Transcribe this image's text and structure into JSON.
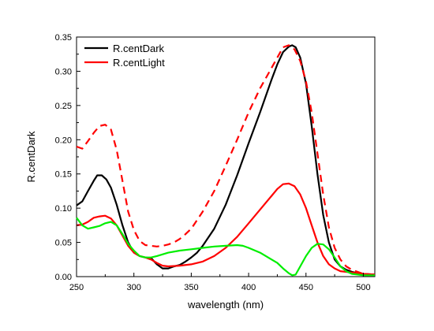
{
  "chart_data": {
    "type": "line",
    "xlabel": "wavelength (nm)",
    "ylabel": "R.centDark",
    "xlim": [
      250,
      510
    ],
    "ylim": [
      0.0,
      0.35
    ],
    "x_ticks": [
      250,
      300,
      350,
      400,
      450,
      500
    ],
    "y_ticks": [
      0.0,
      0.05,
      0.1,
      0.15,
      0.2,
      0.25,
      0.3,
      0.35
    ],
    "legend": {
      "position": "top-left"
    },
    "series": [
      {
        "name": "R.centDark",
        "color": "#000000",
        "dash": "solid",
        "in_legend": true,
        "points": [
          [
            250,
            0.104
          ],
          [
            255,
            0.11
          ],
          [
            260,
            0.125
          ],
          [
            265,
            0.14
          ],
          [
            268,
            0.148
          ],
          [
            272,
            0.148
          ],
          [
            276,
            0.142
          ],
          [
            280,
            0.13
          ],
          [
            285,
            0.105
          ],
          [
            290,
            0.075
          ],
          [
            295,
            0.05
          ],
          [
            300,
            0.035
          ],
          [
            305,
            0.03
          ],
          [
            310,
            0.028
          ],
          [
            315,
            0.027
          ],
          [
            320,
            0.018
          ],
          [
            325,
            0.012
          ],
          [
            330,
            0.012
          ],
          [
            335,
            0.015
          ],
          [
            340,
            0.017
          ],
          [
            345,
            0.022
          ],
          [
            350,
            0.028
          ],
          [
            355,
            0.035
          ],
          [
            360,
            0.045
          ],
          [
            370,
            0.07
          ],
          [
            380,
            0.105
          ],
          [
            390,
            0.148
          ],
          [
            400,
            0.195
          ],
          [
            410,
            0.24
          ],
          [
            420,
            0.288
          ],
          [
            425,
            0.31
          ],
          [
            430,
            0.328
          ],
          [
            435,
            0.336
          ],
          [
            438,
            0.338
          ],
          [
            441,
            0.335
          ],
          [
            445,
            0.32
          ],
          [
            450,
            0.282
          ],
          [
            455,
            0.22
          ],
          [
            460,
            0.15
          ],
          [
            465,
            0.09
          ],
          [
            470,
            0.05
          ],
          [
            475,
            0.025
          ],
          [
            480,
            0.015
          ],
          [
            485,
            0.01
          ],
          [
            490,
            0.007
          ],
          [
            495,
            0.005
          ],
          [
            500,
            0.004
          ],
          [
            510,
            0.003
          ]
        ]
      },
      {
        "name": "R.centLight",
        "color": "#ff0000",
        "dash": "solid",
        "in_legend": true,
        "points": [
          [
            250,
            0.075
          ],
          [
            255,
            0.076
          ],
          [
            260,
            0.08
          ],
          [
            265,
            0.086
          ],
          [
            270,
            0.088
          ],
          [
            275,
            0.089
          ],
          [
            280,
            0.085
          ],
          [
            285,
            0.075
          ],
          [
            290,
            0.06
          ],
          [
            295,
            0.045
          ],
          [
            300,
            0.035
          ],
          [
            305,
            0.03
          ],
          [
            310,
            0.028
          ],
          [
            315,
            0.025
          ],
          [
            320,
            0.02
          ],
          [
            325,
            0.016
          ],
          [
            330,
            0.015
          ],
          [
            340,
            0.016
          ],
          [
            350,
            0.018
          ],
          [
            360,
            0.022
          ],
          [
            370,
            0.03
          ],
          [
            380,
            0.042
          ],
          [
            390,
            0.058
          ],
          [
            400,
            0.078
          ],
          [
            410,
            0.098
          ],
          [
            420,
            0.118
          ],
          [
            425,
            0.128
          ],
          [
            430,
            0.135
          ],
          [
            435,
            0.136
          ],
          [
            440,
            0.132
          ],
          [
            445,
            0.12
          ],
          [
            450,
            0.1
          ],
          [
            455,
            0.075
          ],
          [
            460,
            0.05
          ],
          [
            465,
            0.03
          ],
          [
            470,
            0.018
          ],
          [
            475,
            0.012
          ],
          [
            480,
            0.008
          ],
          [
            490,
            0.006
          ],
          [
            500,
            0.004
          ],
          [
            510,
            0.003
          ]
        ]
      },
      {
        "name": "",
        "color": "#ff0000",
        "dash": "dashed",
        "in_legend": false,
        "points": [
          [
            250,
            0.19
          ],
          [
            255,
            0.187
          ],
          [
            260,
            0.198
          ],
          [
            265,
            0.21
          ],
          [
            270,
            0.22
          ],
          [
            275,
            0.222
          ],
          [
            280,
            0.215
          ],
          [
            285,
            0.185
          ],
          [
            290,
            0.14
          ],
          [
            295,
            0.095
          ],
          [
            300,
            0.068
          ],
          [
            305,
            0.052
          ],
          [
            310,
            0.046
          ],
          [
            315,
            0.045
          ],
          [
            320,
            0.044
          ],
          [
            325,
            0.045
          ],
          [
            330,
            0.047
          ],
          [
            335,
            0.05
          ],
          [
            340,
            0.055
          ],
          [
            345,
            0.062
          ],
          [
            350,
            0.07
          ],
          [
            360,
            0.095
          ],
          [
            370,
            0.125
          ],
          [
            380,
            0.162
          ],
          [
            390,
            0.2
          ],
          [
            400,
            0.24
          ],
          [
            410,
            0.275
          ],
          [
            420,
            0.305
          ],
          [
            425,
            0.32
          ],
          [
            430,
            0.335
          ],
          [
            435,
            0.338
          ],
          [
            440,
            0.332
          ],
          [
            445,
            0.315
          ],
          [
            450,
            0.285
          ],
          [
            455,
            0.24
          ],
          [
            460,
            0.18
          ],
          [
            465,
            0.12
          ],
          [
            470,
            0.072
          ],
          [
            475,
            0.042
          ],
          [
            480,
            0.025
          ],
          [
            485,
            0.015
          ],
          [
            490,
            0.01
          ],
          [
            495,
            0.007
          ],
          [
            500,
            0.004
          ],
          [
            510,
            0.002
          ]
        ]
      },
      {
        "name": "",
        "color": "#00ee00",
        "dash": "solid",
        "in_legend": false,
        "points": [
          [
            250,
            0.086
          ],
          [
            255,
            0.075
          ],
          [
            260,
            0.07
          ],
          [
            265,
            0.072
          ],
          [
            270,
            0.074
          ],
          [
            275,
            0.078
          ],
          [
            280,
            0.08
          ],
          [
            285,
            0.075
          ],
          [
            290,
            0.062
          ],
          [
            295,
            0.048
          ],
          [
            300,
            0.038
          ],
          [
            305,
            0.03
          ],
          [
            310,
            0.028
          ],
          [
            315,
            0.028
          ],
          [
            320,
            0.03
          ],
          [
            330,
            0.035
          ],
          [
            340,
            0.038
          ],
          [
            350,
            0.04
          ],
          [
            360,
            0.042
          ],
          [
            370,
            0.044
          ],
          [
            380,
            0.045
          ],
          [
            390,
            0.046
          ],
          [
            395,
            0.045
          ],
          [
            400,
            0.042
          ],
          [
            410,
            0.035
          ],
          [
            420,
            0.025
          ],
          [
            425,
            0.02
          ],
          [
            430,
            0.012
          ],
          [
            435,
            0.005
          ],
          [
            438,
            0.002
          ],
          [
            441,
            0.003
          ],
          [
            445,
            0.015
          ],
          [
            450,
            0.03
          ],
          [
            455,
            0.042
          ],
          [
            460,
            0.048
          ],
          [
            465,
            0.047
          ],
          [
            470,
            0.04
          ],
          [
            475,
            0.028
          ],
          [
            480,
            0.015
          ],
          [
            485,
            0.008
          ],
          [
            490,
            0.004
          ],
          [
            495,
            0.003
          ],
          [
            500,
            0.002
          ],
          [
            510,
            0.002
          ]
        ]
      }
    ]
  }
}
